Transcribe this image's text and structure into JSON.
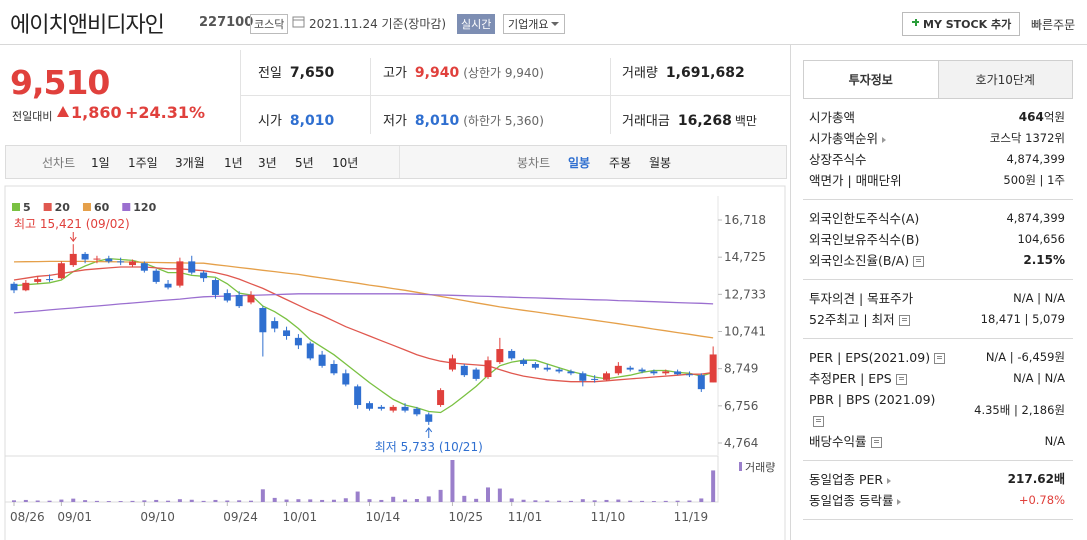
{
  "header": {
    "title": "에이치앤비디자인",
    "code": "227100",
    "market": "코스닥",
    "date": "2021.11.24 기준(장마감)",
    "realtime": "실시간",
    "overview": "기업개요",
    "mystock": "MY STOCK 추가",
    "quick_order": "빠른주문"
  },
  "price": {
    "value": "9,510",
    "change_label": "전일대비",
    "change": "1,860",
    "change_pct": "+24.31%"
  },
  "summary": [
    [
      {
        "label": "전일",
        "value": "7,650",
        "color": "#222"
      },
      {
        "label": "고가",
        "value": "9,940",
        "note": "(상한가 9,940)",
        "color": "#e0403c"
      },
      {
        "label": "거래량",
        "value": "1,691,682",
        "color": "#222"
      }
    ],
    [
      {
        "label": "시가",
        "value": "8,010",
        "color": "#2f6fd0"
      },
      {
        "label": "저가",
        "value": "8,010",
        "note": "(하한가 5,360)",
        "color": "#2f6fd0"
      },
      {
        "label": "거래대금",
        "value": "16,268",
        "unit": "백만",
        "color": "#222"
      }
    ]
  ],
  "tabs": {
    "line_label": "선차트",
    "line_items": [
      "1일",
      "1주일",
      "3개월",
      "1년",
      "3년",
      "5년",
      "10년"
    ],
    "candle_label": "봉차트",
    "candle_items": [
      "일봉",
      "주봉",
      "월봉"
    ],
    "candle_active": 0
  },
  "chart": {
    "type": "candlestick",
    "categories": [
      "08/26",
      null,
      null,
      null,
      "09/01",
      null,
      null,
      null,
      null,
      null,
      null,
      "09/10",
      null,
      null,
      null,
      null,
      null,
      null,
      "09/24",
      null,
      null,
      null,
      null,
      "10/01",
      null,
      null,
      null,
      null,
      null,
      null,
      "10/14",
      null,
      null,
      null,
      null,
      null,
      null,
      "10/25",
      null,
      null,
      null,
      null,
      "11/01",
      null,
      null,
      null,
      null,
      null,
      null,
      "11/10",
      null,
      null,
      null,
      null,
      null,
      null,
      "11/19",
      null,
      null,
      null
    ],
    "open": [
      13300,
      12950,
      13400,
      13550,
      13600,
      14300,
      14900,
      14600,
      14650,
      14500,
      14300,
      14400,
      14000,
      13300,
      13200,
      14500,
      13900,
      13500,
      12800,
      12700,
      12300,
      12000,
      11300,
      10800,
      10400,
      10100,
      9500,
      9000,
      8500,
      7800,
      6900,
      6700,
      6500,
      6700,
      6600,
      6300,
      6800,
      8700,
      8900,
      8700,
      8300,
      9100,
      9700,
      9200,
      9000,
      8800,
      8700,
      8600,
      8500,
      8200,
      8150,
      8500,
      8800,
      8700,
      8600,
      8500,
      8600,
      8450,
      8400,
      8010
    ],
    "high": [
      13400,
      13500,
      13700,
      13800,
      14500,
      15421,
      15000,
      14800,
      14800,
      14700,
      14600,
      14500,
      14100,
      13500,
      14700,
      14800,
      14000,
      13600,
      13000,
      12900,
      12900,
      12100,
      11500,
      11000,
      10600,
      10200,
      9700,
      9200,
      8700,
      7900,
      7000,
      6800,
      6800,
      6900,
      6700,
      6400,
      7700,
      9500,
      9000,
      8800,
      9400,
      10400,
      9800,
      9300,
      9100,
      9000,
      8800,
      8700,
      8600,
      8400,
      8600,
      9100,
      8900,
      8800,
      8700,
      8700,
      8700,
      8600,
      8500,
      9940
    ],
    "low": [
      12800,
      12900,
      13300,
      13400,
      13550,
      14200,
      14400,
      14400,
      14400,
      14300,
      14200,
      13900,
      13300,
      13000,
      13100,
      13800,
      13400,
      12500,
      12300,
      12000,
      12200,
      9400,
      10700,
      10300,
      9800,
      9200,
      8800,
      8400,
      7800,
      6600,
      6500,
      6500,
      6400,
      6400,
      6200,
      5733,
      6700,
      8600,
      8300,
      8100,
      8200,
      9000,
      9200,
      8900,
      8700,
      8600,
      8500,
      8400,
      7800,
      8000,
      8100,
      8400,
      8600,
      8500,
      8400,
      8400,
      8400,
      8300,
      7500,
      8010
    ],
    "close": [
      12950,
      13350,
      13550,
      13500,
      14400,
      14900,
      14600,
      14650,
      14500,
      14450,
      14500,
      14000,
      13400,
      13100,
      14500,
      13900,
      13600,
      12700,
      12400,
      12100,
      12700,
      10700,
      10900,
      10500,
      10000,
      9300,
      8900,
      8500,
      7900,
      6800,
      6600,
      6600,
      6700,
      6500,
      6300,
      5900,
      7600,
      9300,
      8400,
      8200,
      9200,
      9800,
      9300,
      9000,
      8800,
      8700,
      8600,
      8500,
      8100,
      8150,
      8500,
      8900,
      8700,
      8600,
      8500,
      8600,
      8450,
      8400,
      7650,
      9510
    ],
    "ylim": [
      4764,
      16718
    ],
    "yticks": [
      {
        "value": 16718,
        "label": "16,718"
      },
      {
        "value": 14725,
        "label": "14,725"
      },
      {
        "value": 12733,
        "label": "12,733"
      },
      {
        "value": 10741,
        "label": "10,741"
      },
      {
        "value": 8749,
        "label": "8,749"
      },
      {
        "value": 6756,
        "label": "6,756"
      },
      {
        "value": 4764,
        "label": "4,764"
      }
    ],
    "up_color": "#e0403c",
    "down_color": "#2f6fd0",
    "series": [
      {
        "name": "5",
        "color": "#7ac142",
        "values": [
          13200,
          13250,
          13300,
          13350,
          13500,
          13950,
          14250,
          14500,
          14650,
          14600,
          14550,
          14400,
          14150,
          13900,
          13900,
          13750,
          13700,
          13650,
          13300,
          12800,
          12700,
          12100,
          11800,
          11400,
          10900,
          10300,
          9900,
          9500,
          9000,
          8500,
          8000,
          7550,
          7100,
          6800,
          6650,
          6450,
          6400,
          6800,
          7300,
          7800,
          8400,
          8900,
          9100,
          9200,
          9200,
          9000,
          8800,
          8600,
          8450,
          8300,
          8200,
          8300,
          8400,
          8550,
          8650,
          8650,
          8550,
          8500,
          8350,
          8550
        ]
      },
      {
        "name": "20",
        "color": "#e0584f",
        "values": [
          13500,
          13600,
          13700,
          13750,
          13850,
          13950,
          14050,
          14100,
          14150,
          14200,
          14200,
          14200,
          14150,
          14100,
          14100,
          14050,
          14000,
          13900,
          13750,
          13550,
          13300,
          13050,
          12750,
          12450,
          12150,
          11850,
          11600,
          11300,
          11000,
          10750,
          10500,
          10250,
          10000,
          9750,
          9500,
          9300,
          9150,
          9050,
          9000,
          8950,
          8900,
          8700,
          8500,
          8350,
          8250,
          8150,
          8100,
          8050,
          8050,
          8050,
          8100,
          8150,
          8200,
          8250,
          8300,
          8350,
          8400,
          8450,
          8450,
          8550
        ]
      },
      {
        "name": "60",
        "color": "#e5a04a",
        "values": [
          14470,
          14480,
          14490,
          14500,
          14500,
          14500,
          14500,
          14490,
          14480,
          14470,
          14460,
          14450,
          14440,
          14430,
          14420,
          14410,
          14400,
          14320,
          14250,
          14170,
          14100,
          14020,
          13950,
          13870,
          13800,
          13700,
          13610,
          13520,
          13420,
          13330,
          13230,
          13140,
          13040,
          12950,
          12840,
          12730,
          12620,
          12510,
          12400,
          12280,
          12170,
          12060,
          11970,
          11880,
          11790,
          11700,
          11610,
          11520,
          11430,
          11340,
          11250,
          11160,
          11060,
          10970,
          10870,
          10780,
          10680,
          10590,
          10490,
          10400
        ]
      },
      {
        "name": "120",
        "color": "#9b6fd0",
        "values": [
          11740,
          11790,
          11840,
          11900,
          11950,
          12000,
          12060,
          12110,
          12160,
          12220,
          12270,
          12320,
          12380,
          12430,
          12480,
          12540,
          12600,
          12620,
          12640,
          12660,
          12680,
          12700,
          12720,
          12740,
          12760,
          12760,
          12760,
          12760,
          12760,
          12760,
          12760,
          12760,
          12760,
          12760,
          12740,
          12720,
          12700,
          12680,
          12660,
          12640,
          12620,
          12600,
          12580,
          12560,
          12540,
          12520,
          12500,
          12480,
          12460,
          12440,
          12430,
          12400,
          12380,
          12360,
          12340,
          12310,
          12290,
          12270,
          12250,
          12220
        ]
      }
    ],
    "volume": {
      "name": "거래량",
      "color": "#9a7fcb",
      "values": [
        90000,
        110000,
        80000,
        70000,
        130000,
        180000,
        100000,
        60000,
        50000,
        50000,
        60000,
        90000,
        110000,
        70000,
        150000,
        120000,
        60000,
        110000,
        80000,
        90000,
        70000,
        680000,
        220000,
        130000,
        150000,
        140000,
        110000,
        120000,
        200000,
        560000,
        150000,
        110000,
        280000,
        130000,
        160000,
        300000,
        650000,
        2250000,
        330000,
        170000,
        780000,
        720000,
        190000,
        120000,
        90000,
        80000,
        70000,
        60000,
        150000,
        90000,
        110000,
        130000,
        70000,
        60000,
        50000,
        60000,
        70000,
        80000,
        190000,
        1691682
      ]
    },
    "annotations": {
      "high": "최고 15,421 (09/02)",
      "low": "최저 5,733 (10/21)"
    }
  },
  "side": {
    "tabs": [
      "투자정보",
      "호가10단계"
    ],
    "groups": [
      [
        {
          "label": "시가총액",
          "value": "464",
          "unit": "억원",
          "bold": true
        },
        {
          "label": "시가총액순위",
          "link": true,
          "value": "코스닥 1372위"
        },
        {
          "label": "상장주식수",
          "value": "4,874,399"
        },
        {
          "label": "액면가 | 매매단위",
          "value": "500원 | 1주"
        }
      ],
      [
        {
          "label": "외국인한도주식수(A)",
          "value": "4,874,399"
        },
        {
          "label": "외국인보유주식수(B)",
          "value": "104,656"
        },
        {
          "label": "외국인소진율(B/A)",
          "info": true,
          "value": "2.15%",
          "bold": true
        }
      ],
      [
        {
          "label": "투자의견 | 목표주가",
          "value": "N/A | N/A"
        },
        {
          "label": "52주최고 | 최저",
          "info": true,
          "value": "18,471 | 5,079"
        }
      ],
      [
        {
          "label": "PER | EPS(2021.09)",
          "info": true,
          "value": "N/A | -6,459원"
        },
        {
          "label": "추정PER | EPS",
          "info": true,
          "value": "N/A | N/A"
        },
        {
          "label": "PBR | BPS (2021.09)",
          "info": true,
          "value": "4.35배 | 2,186원"
        },
        {
          "label": "배당수익률",
          "info": true,
          "value": "N/A"
        }
      ],
      [
        {
          "label": "동일업종 PER",
          "link": true,
          "value": "217.62배",
          "bold": true
        },
        {
          "label": "동일업종 등락률",
          "link": true,
          "value": "+0.78%",
          "color": "#e0403c"
        }
      ]
    ]
  }
}
